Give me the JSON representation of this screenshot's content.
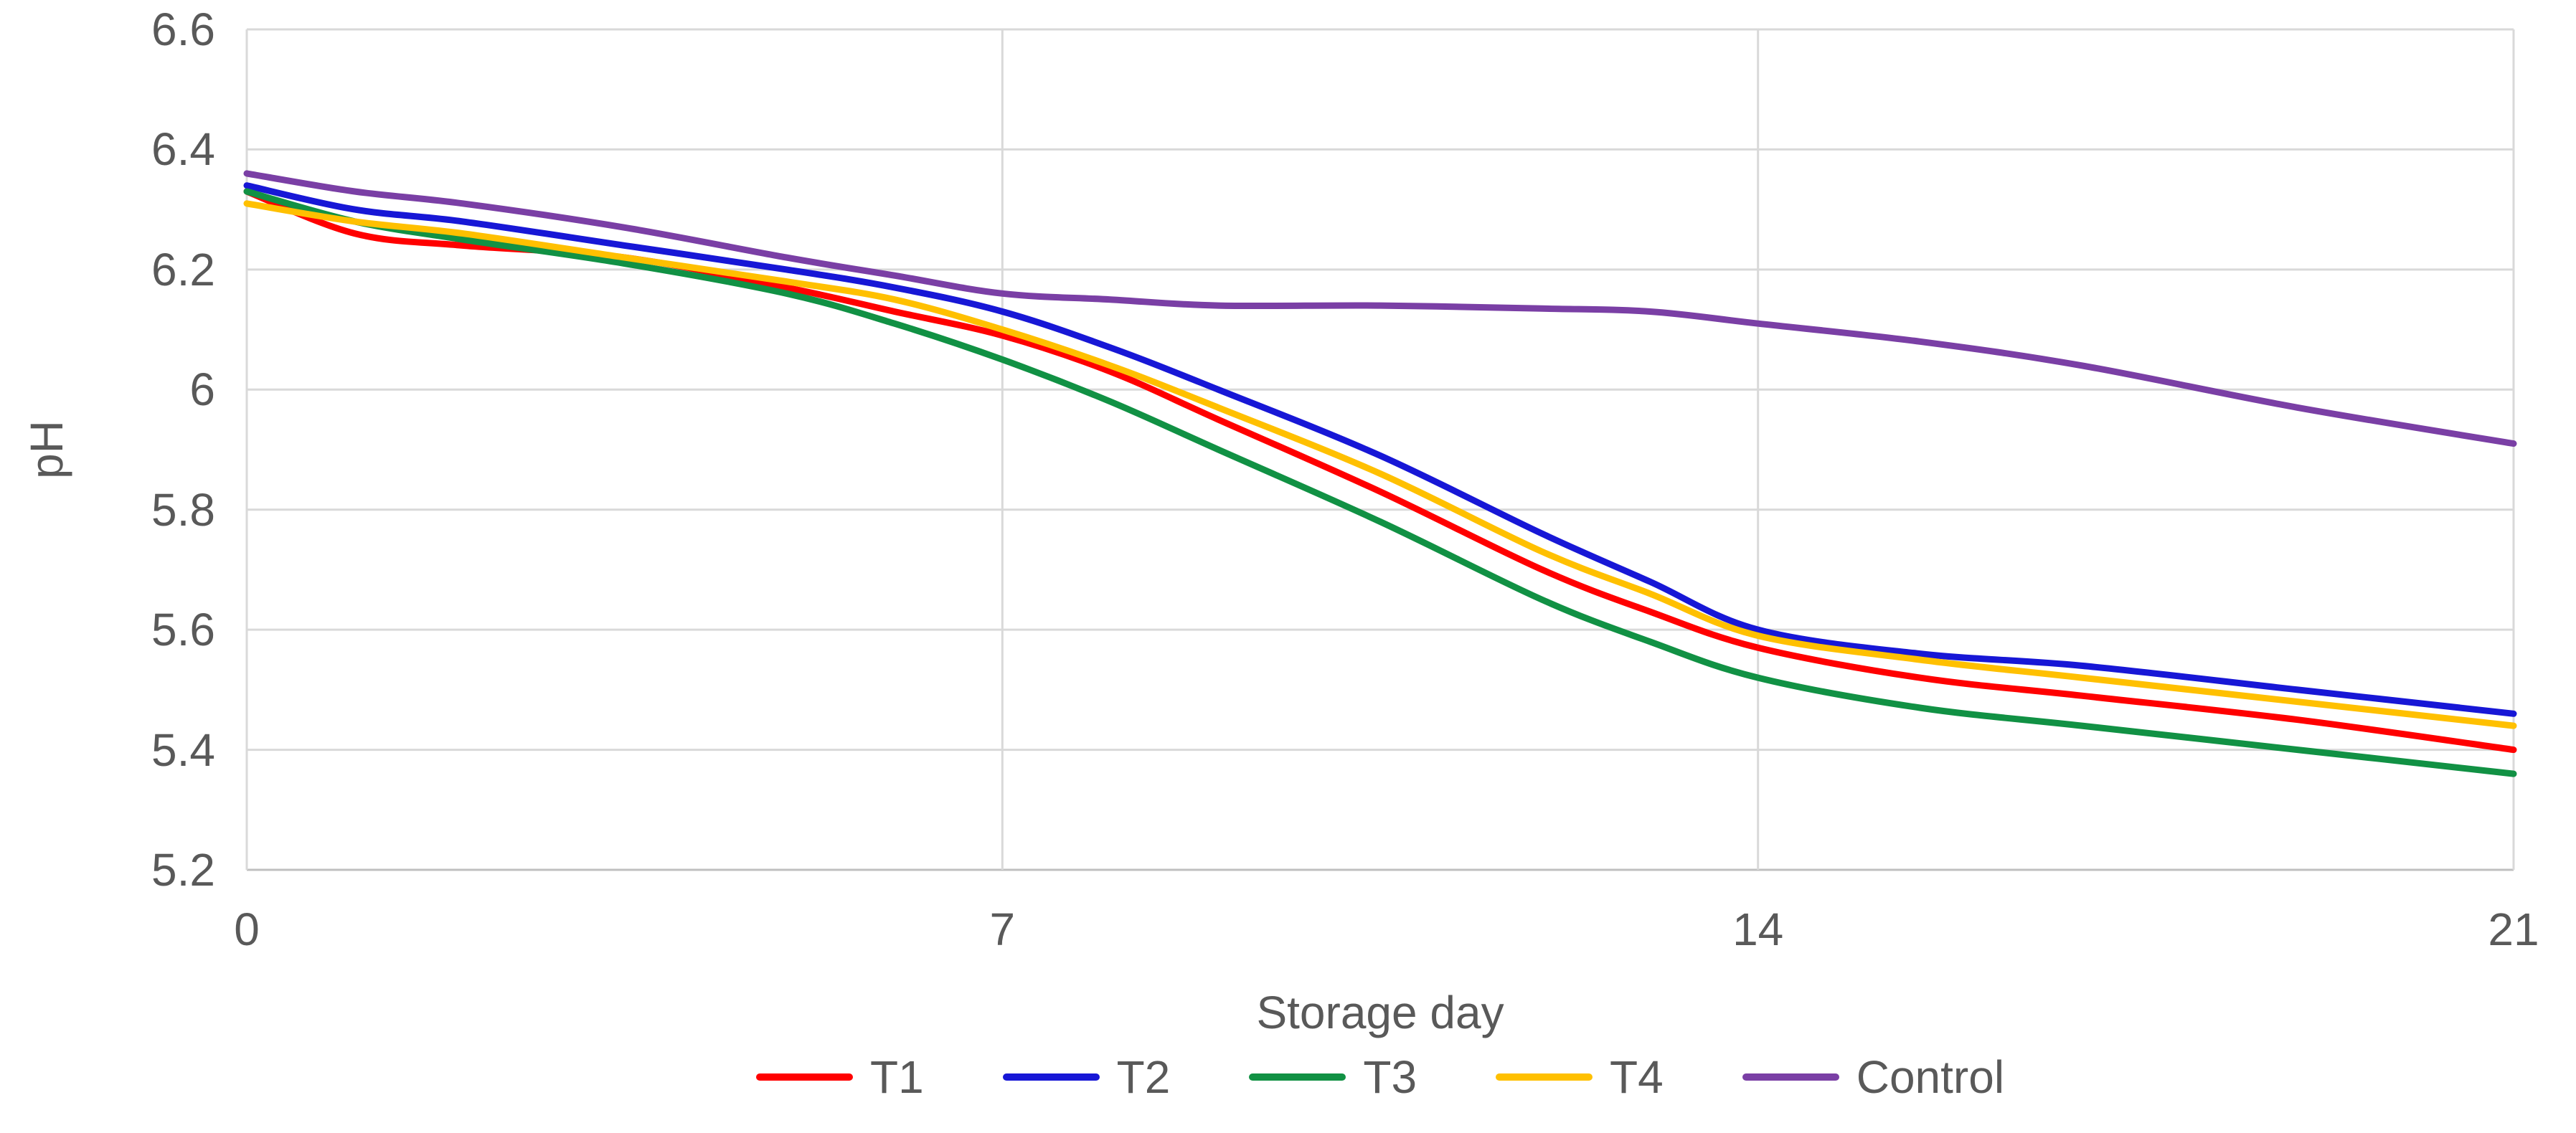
{
  "chart_data": {
    "type": "line",
    "title": "",
    "xlabel": "Storage day",
    "ylabel": "pH",
    "xlim": [
      0,
      21
    ],
    "ylim": [
      5.2,
      6.6
    ],
    "x_ticks": [
      0,
      7,
      14,
      21
    ],
    "x_tick_labels": [
      "0",
      "7",
      "14",
      "21"
    ],
    "y_ticks": [
      6.6,
      6.4,
      6.2,
      6.0,
      5.8,
      5.6,
      5.4,
      5.2
    ],
    "y_tick_labels": [
      "6.6",
      "6.4",
      "6.2",
      "6",
      "5.8",
      "5.6",
      "5.4",
      "5.2"
    ],
    "grid": true,
    "legend_position": "bottom",
    "x": [
      0,
      1,
      2,
      3.5,
      5,
      6,
      7,
      8,
      9,
      10.5,
      12,
      13,
      14,
      15.5,
      17,
      19,
      21
    ],
    "series": [
      {
        "name": "T1",
        "color": "#FF0000",
        "values": [
          6.33,
          6.26,
          6.24,
          6.22,
          6.17,
          6.13,
          6.09,
          6.03,
          5.95,
          5.83,
          5.7,
          5.63,
          5.57,
          5.52,
          5.49,
          5.45,
          5.4
        ]
      },
      {
        "name": "T2",
        "color": "#1717D6",
        "values": [
          6.34,
          6.3,
          6.28,
          6.24,
          6.2,
          6.17,
          6.13,
          6.07,
          6.0,
          5.89,
          5.76,
          5.68,
          5.6,
          5.56,
          5.54,
          5.5,
          5.46
        ]
      },
      {
        "name": "T3",
        "color": "#119144",
        "values": [
          6.33,
          6.28,
          6.25,
          6.21,
          6.16,
          6.11,
          6.05,
          5.98,
          5.9,
          5.78,
          5.65,
          5.58,
          5.52,
          5.47,
          5.44,
          5.4,
          5.36
        ]
      },
      {
        "name": "T4",
        "color": "#FFC000",
        "values": [
          6.31,
          6.28,
          6.26,
          6.22,
          6.18,
          6.15,
          6.1,
          6.04,
          5.97,
          5.86,
          5.73,
          5.66,
          5.59,
          5.55,
          5.52,
          5.48,
          5.44
        ]
      },
      {
        "name": "Control",
        "color": "#7A3FA5",
        "values": [
          6.36,
          6.33,
          6.31,
          6.27,
          6.22,
          6.19,
          6.16,
          6.15,
          6.14,
          6.14,
          6.135,
          6.13,
          6.11,
          6.08,
          6.04,
          5.97,
          5.91
        ]
      }
    ]
  },
  "style": {
    "grid_color": "#D9D9D9",
    "axis_line_color": "#BFBFBF",
    "axis_text_color": "#595959",
    "background": "#FFFFFF"
  }
}
